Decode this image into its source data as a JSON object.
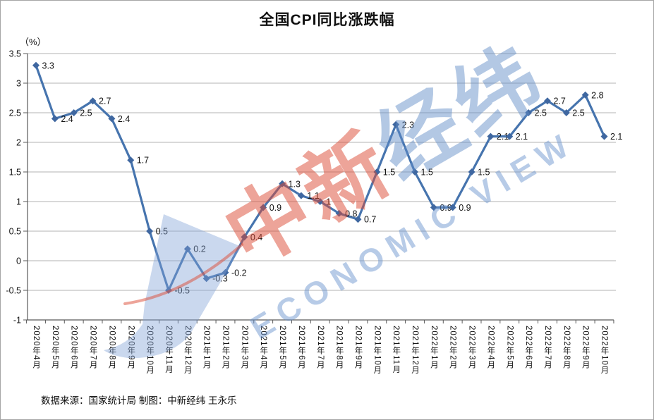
{
  "page": {
    "title": "全国CPI同比涨跌幅",
    "unit_label": "（%）",
    "footer": "数据来源：国家统计局 制图：中新经纬 王永乐"
  },
  "watermark": {
    "cn_red": "中新",
    "cn_blue": "经纬",
    "en": "ECONOMIC VIEW",
    "red_color": "rgba(219,73,52,0.50)",
    "blue_color": "rgba(96,139,199,0.48)"
  },
  "chart_data": {
    "type": "line",
    "title": "全国CPI同比涨跌幅",
    "xlabel": "",
    "ylabel": "（%）",
    "ylim": [
      -1,
      3.5
    ],
    "ytick_step": 0.5,
    "grid": true,
    "legend_position": "none",
    "line_color": "#4674ae",
    "marker": "diamond",
    "marker_color": "#3f67a0",
    "grid_color": "#b3b3b3",
    "axis_color": "#595959",
    "label_color": "#141414",
    "categories": [
      "2020年4月",
      "2020年5月",
      "2020年6月",
      "2020年7月",
      "2020年8月",
      "2020年9月",
      "2020年10月",
      "2020年11月",
      "2020年12月",
      "2021年1月",
      "2021年2月",
      "2021年3月",
      "2021年4月",
      "2021年5月",
      "2021年6月",
      "2021年7月",
      "2021年8月",
      "2021年9月",
      "2021年10月",
      "2021年11月",
      "2021年12月",
      "2022年1月",
      "2022年2月",
      "2022年3月",
      "2022年4月",
      "2022年5月",
      "2022年6月",
      "2022年7月",
      "2022年8月",
      "2022年9月",
      "2022年10月"
    ],
    "values": [
      3.3,
      2.4,
      2.5,
      2.7,
      2.4,
      1.7,
      0.5,
      -0.5,
      0.2,
      -0.3,
      -0.2,
      0.4,
      0.9,
      1.3,
      1.1,
      1,
      0.8,
      0.7,
      1.5,
      2.3,
      1.5,
      0.9,
      0.9,
      1.5,
      2.1,
      2.1,
      2.5,
      2.7,
      2.5,
      2.8,
      2.1
    ]
  }
}
